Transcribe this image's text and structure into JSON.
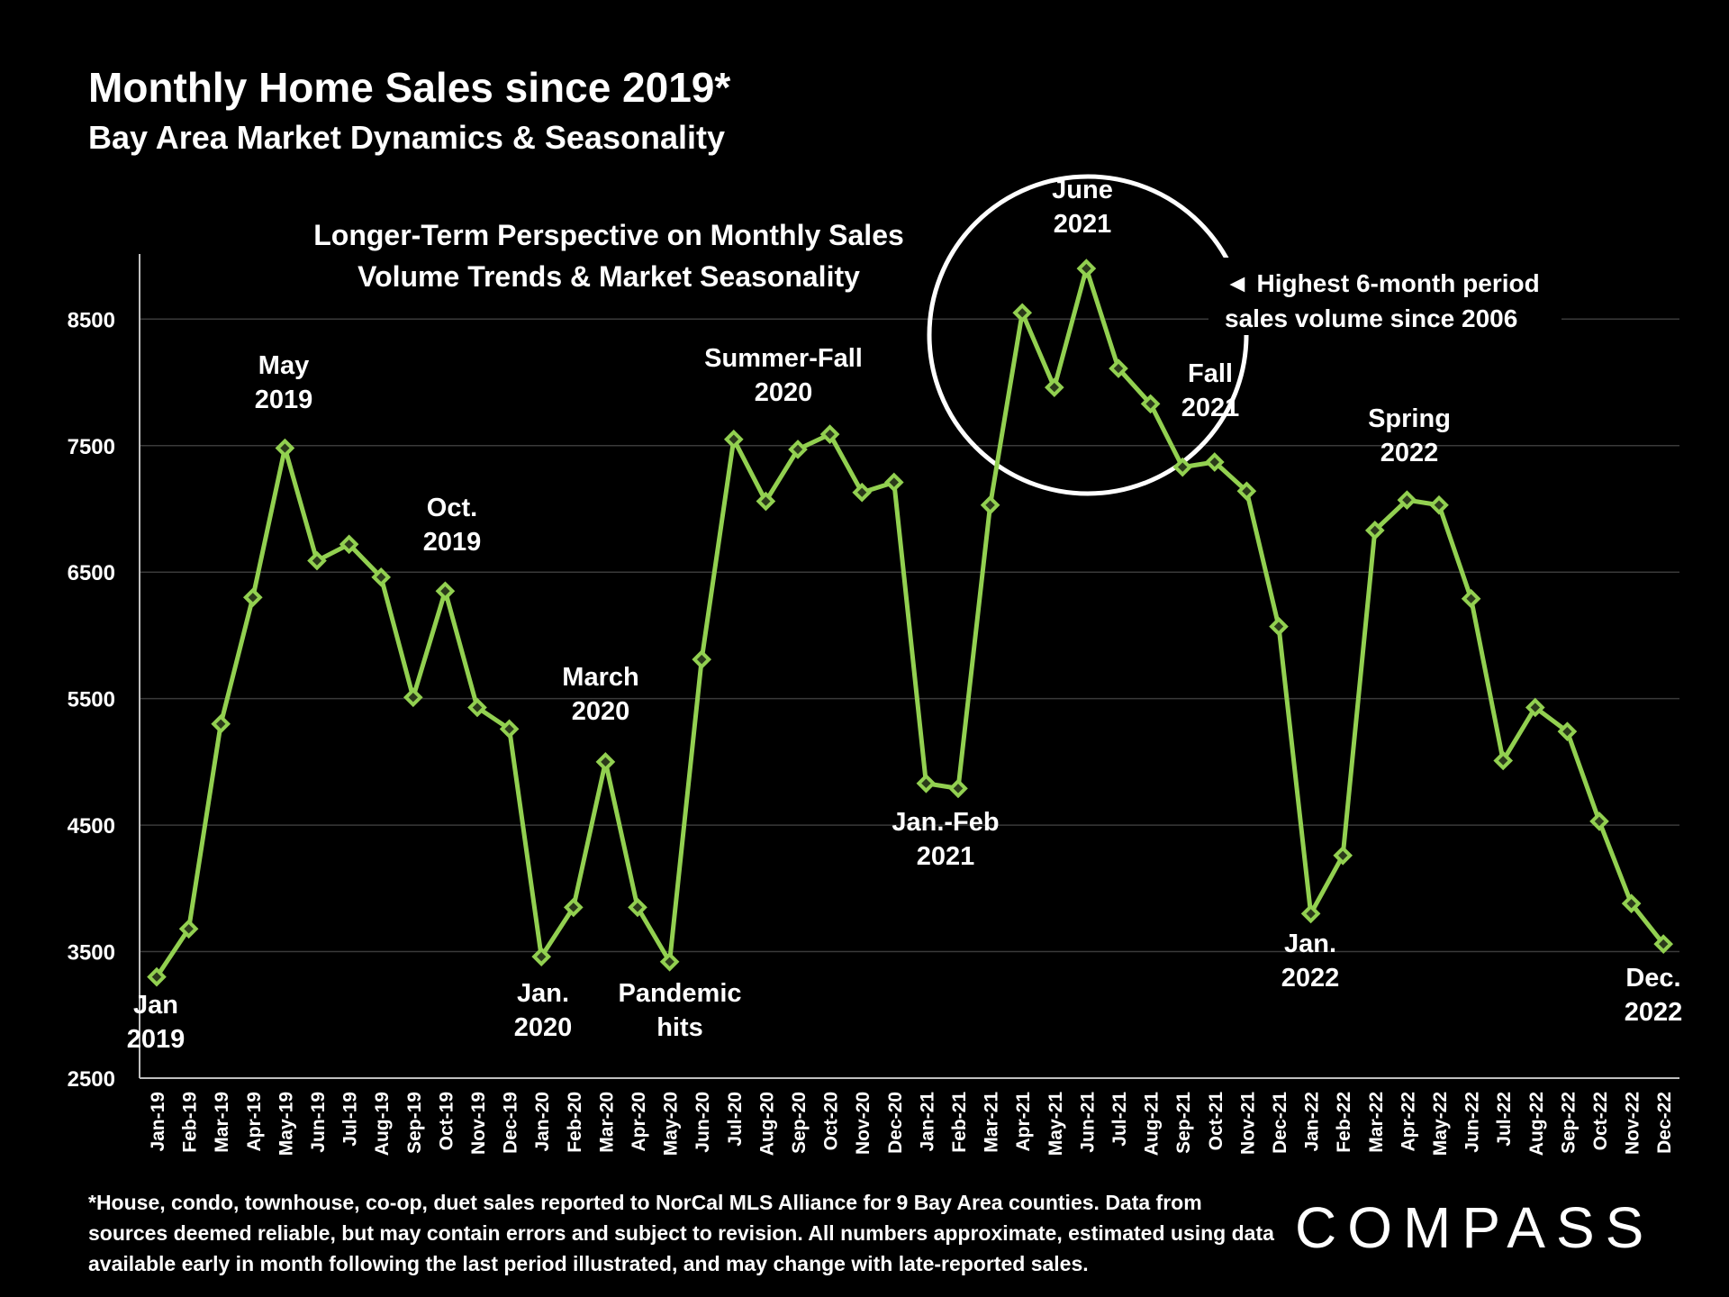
{
  "title": "Monthly Home Sales since 2019*",
  "subtitle": "Bay Area Market Dynamics & Seasonality",
  "footnote": "*House, condo, townhouse, co-op, duet sales reported to NorCal MLS Alliance for 9 Bay Area counties. Data from sources deemed reliable, but may contain errors and subject to revision. All numbers approximate, estimated using data available early in month following the last period illustrated,  and may change with late-reported sales.",
  "logo": "COMPASS",
  "colors": {
    "background": "#000000",
    "line": "#92d050",
    "marker_fill": "#2b3a1a",
    "grid": "#3a3a3a",
    "text": "#ffffff"
  },
  "chart_data": {
    "type": "line",
    "title": "Longer-Term Perspective on Monthly Sales Volume Trends & Market Seasonality",
    "title_lines": [
      "Longer-Term Perspective on Monthly Sales",
      "Volume Trends & Market Seasonality"
    ],
    "xlabel": "",
    "ylabel": "",
    "ylim": [
      2500,
      9000
    ],
    "yticks": [
      2500,
      3500,
      4500,
      5500,
      6500,
      7500,
      8500
    ],
    "grid": true,
    "categories": [
      "Jan-19",
      "Feb-19",
      "Mar-19",
      "Apr-19",
      "May-19",
      "Jun-19",
      "Jul-19",
      "Aug-19",
      "Sep-19",
      "Oct-19",
      "Nov-19",
      "Dec-19",
      "Jan-20",
      "Feb-20",
      "Mar-20",
      "Apr-20",
      "May-20",
      "Jun-20",
      "Jul-20",
      "Aug-20",
      "Sep-20",
      "Oct-20",
      "Nov-20",
      "Dec-20",
      "Jan-21",
      "Feb-21",
      "Mar-21",
      "Apr-21",
      "May-21",
      "Jun-21",
      "Jul-21",
      "Aug-21",
      "Sep-21",
      "Oct-21",
      "Nov-21",
      "Dec-21",
      "Jan-22",
      "Feb-22",
      "Mar-22",
      "Apr-22",
      "May-22",
      "Jun-22",
      "Jul-22",
      "Aug-22",
      "Sep-22",
      "Oct-22",
      "Nov-22",
      "Dec-22"
    ],
    "series": [
      {
        "name": "Monthly Home Sales",
        "values": [
          3300,
          3680,
          5300,
          6300,
          7480,
          6590,
          6720,
          6460,
          5510,
          6350,
          5430,
          5260,
          3460,
          3850,
          5000,
          3850,
          3420,
          5810,
          7550,
          7060,
          7470,
          7590,
          7130,
          7210,
          4830,
          4790,
          7030,
          8550,
          7960,
          8900,
          8110,
          7830,
          7330,
          7370,
          7140,
          6070,
          3800,
          4260,
          6830,
          7070,
          7030,
          6290,
          5010,
          5430,
          5240,
          4530,
          3880,
          3560
        ]
      }
    ],
    "annotations": [
      {
        "text": [
          "Jan",
          "2019"
        ]
      },
      {
        "text": [
          "May",
          "2019"
        ]
      },
      {
        "text": [
          "Oct.",
          "2019"
        ]
      },
      {
        "text": [
          "Jan.",
          "2020"
        ]
      },
      {
        "text": [
          "March",
          "2020"
        ]
      },
      {
        "text": [
          "Pandemic",
          "hits"
        ]
      },
      {
        "text": [
          "Summer-Fall",
          "2020"
        ]
      },
      {
        "text": [
          "Jan.-Feb",
          "2021"
        ]
      },
      {
        "text": [
          "June",
          "2021"
        ]
      },
      {
        "text": [
          "Fall",
          "2021"
        ]
      },
      {
        "text": [
          "Spring",
          "2022"
        ]
      },
      {
        "text": [
          "Jan.",
          "2022"
        ]
      },
      {
        "text": [
          "Dec.",
          "2022"
        ]
      }
    ],
    "callout": {
      "text": [
        "◄ Highest 6-month period",
        "sales volume since 2006"
      ]
    }
  }
}
